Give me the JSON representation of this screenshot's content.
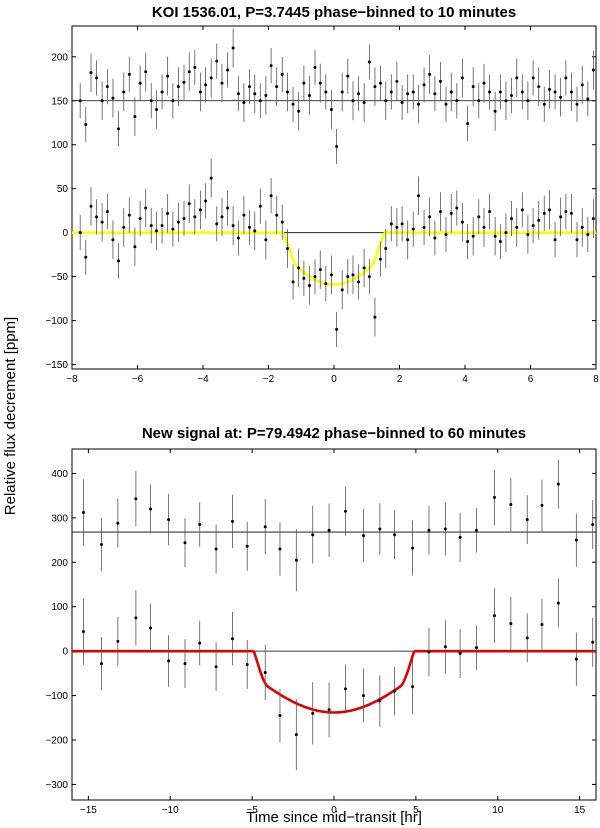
{
  "figure": {
    "shared_ylabel": "Relative flux decrement [ppm]",
    "shared_xlabel": "Time since mid−transit [hr]"
  },
  "chart_data": [
    {
      "type": "scatter",
      "title": "KOI 1536.01, P=3.7445 phase−binned to 10 minutes",
      "xlabel": "",
      "ylabel": "",
      "xlim": [
        -8,
        8
      ],
      "ylim": [
        -155,
        235
      ],
      "xticks": [
        -8,
        -6,
        -4,
        -2,
        0,
        2,
        4,
        6,
        8
      ],
      "yticks": [
        -150,
        -100,
        -50,
        0,
        50,
        100,
        150,
        200
      ],
      "grid": false,
      "model_color": "#ffff00",
      "model": {
        "baseline": 0,
        "depth": 59,
        "t14": 3.1,
        "ingress": 0.45
      },
      "reference_lines": [
        150,
        0
      ],
      "errorbar_color": "#555555",
      "point_color": "#000000",
      "series": [
        {
          "offset": 150,
          "x": [
            -7.75,
            -7.58,
            -7.42,
            -7.25,
            -7.08,
            -6.92,
            -6.75,
            -6.58,
            -6.42,
            -6.25,
            -6.08,
            -5.92,
            -5.75,
            -5.58,
            -5.42,
            -5.25,
            -5.08,
            -4.92,
            -4.75,
            -4.58,
            -4.42,
            -4.25,
            -4.08,
            -3.92,
            -3.75,
            -3.58,
            -3.42,
            -3.25,
            -3.08,
            -2.92,
            -2.75,
            -2.58,
            -2.42,
            -2.25,
            -2.08,
            -1.92,
            -1.75,
            -1.58,
            -1.42,
            -1.25,
            -1.08,
            -0.92,
            -0.75,
            -0.58,
            -0.42,
            -0.25,
            -0.08,
            0.08,
            0.25,
            0.42,
            0.58,
            0.75,
            0.92,
            1.08,
            1.25,
            1.42,
            1.58,
            1.75,
            1.92,
            2.08,
            2.25,
            2.42,
            2.58,
            2.75,
            2.92,
            3.08,
            3.25,
            3.42,
            3.58,
            3.75,
            3.92,
            4.08,
            4.25,
            4.42,
            4.58,
            4.75,
            4.92,
            5.08,
            5.25,
            5.42,
            5.58,
            5.75,
            5.92,
            6.08,
            6.25,
            6.42,
            6.58,
            6.75,
            6.92,
            7.08,
            7.25,
            7.42,
            7.58,
            7.75,
            7.92
          ],
          "y": [
            150,
            123,
            182,
            176,
            150,
            166,
            153,
            118,
            160,
            180,
            132,
            170,
            183,
            150,
            140,
            160,
            178,
            150,
            166,
            171,
            183,
            188,
            160,
            168,
            176,
            195,
            170,
            185,
            210,
            158,
            148,
            166,
            158,
            150,
            156,
            190,
            166,
            180,
            160,
            146,
            138,
            170,
            156,
            188,
            170,
            160,
            140,
            98,
            160,
            178,
            150,
            158,
            148,
            194,
            166,
            170,
            150,
            160,
            172,
            148,
            158,
            160,
            146,
            168,
            180,
            158,
            172,
            146,
            160,
            150,
            176,
            124,
            166,
            150,
            170,
            160,
            138,
            160,
            150,
            156,
            176,
            160,
            150,
            176,
            166,
            146,
            163,
            160,
            154,
            176,
            160,
            146,
            168,
            152,
            185
          ],
          "err": [
            20,
            20,
            22,
            20,
            22,
            20,
            22,
            20,
            22,
            20,
            22,
            20,
            22,
            20,
            22,
            20,
            22,
            20,
            22,
            20,
            22,
            20,
            22,
            20,
            22,
            20,
            22,
            20,
            22,
            20,
            22,
            20,
            22,
            20,
            22,
            20,
            22,
            20,
            22,
            20,
            22,
            20,
            22,
            20,
            22,
            20,
            22,
            20,
            22,
            20,
            22,
            20,
            22,
            20,
            22,
            20,
            22,
            20,
            22,
            20,
            22,
            20,
            22,
            20,
            22,
            20,
            22,
            20,
            22,
            20,
            22,
            20,
            22,
            20,
            22,
            20,
            22,
            20,
            22,
            20,
            22,
            20,
            22,
            20,
            22,
            20,
            22,
            20,
            22,
            20,
            22,
            20,
            22,
            20,
            22
          ]
        },
        {
          "offset": 0,
          "x": [
            -7.75,
            -7.58,
            -7.42,
            -7.25,
            -7.08,
            -6.92,
            -6.75,
            -6.58,
            -6.42,
            -6.25,
            -6.08,
            -5.92,
            -5.75,
            -5.58,
            -5.42,
            -5.25,
            -5.08,
            -4.92,
            -4.75,
            -4.58,
            -4.42,
            -4.25,
            -4.08,
            -3.92,
            -3.75,
            -3.58,
            -3.42,
            -3.25,
            -3.08,
            -2.92,
            -2.75,
            -2.58,
            -2.42,
            -2.25,
            -2.08,
            -1.92,
            -1.75,
            -1.58,
            -1.42,
            -1.25,
            -1.08,
            -0.92,
            -0.75,
            -0.58,
            -0.42,
            -0.25,
            -0.08,
            0.08,
            0.25,
            0.42,
            0.58,
            0.75,
            0.92,
            1.08,
            1.25,
            1.42,
            1.58,
            1.75,
            1.92,
            2.08,
            2.25,
            2.42,
            2.58,
            2.75,
            2.92,
            3.08,
            3.25,
            3.42,
            3.58,
            3.75,
            3.92,
            4.08,
            4.25,
            4.42,
            4.58,
            4.75,
            4.92,
            5.08,
            5.25,
            5.42,
            5.58,
            5.75,
            5.92,
            6.08,
            6.25,
            6.42,
            6.58,
            6.75,
            6.92,
            7.08,
            7.25,
            7.42,
            7.58,
            7.75,
            7.92
          ],
          "y": [
            0,
            -28,
            30,
            18,
            12,
            24,
            -8,
            -32,
            6,
            20,
            -16,
            16,
            28,
            8,
            2,
            8,
            22,
            4,
            12,
            16,
            33,
            18,
            26,
            36,
            62,
            10,
            18,
            28,
            8,
            -6,
            20,
            6,
            2,
            30,
            -8,
            42,
            20,
            12,
            -18,
            -56,
            -40,
            -52,
            -60,
            -50,
            -42,
            -58,
            -48,
            -110,
            -65,
            -50,
            -48,
            -56,
            -40,
            -50,
            -96,
            -30,
            -18,
            10,
            6,
            10,
            -8,
            4,
            42,
            6,
            18,
            -6,
            24,
            -2,
            22,
            28,
            12,
            -10,
            -4,
            18,
            6,
            24,
            -4,
            -10,
            0,
            16,
            6,
            26,
            -2,
            8,
            14,
            22,
            26,
            -8,
            18,
            24,
            22,
            -8,
            6,
            -2,
            16
          ],
          "err": [
            20,
            20,
            22,
            20,
            22,
            20,
            22,
            20,
            22,
            20,
            22,
            20,
            22,
            20,
            22,
            20,
            22,
            20,
            22,
            20,
            22,
            20,
            22,
            20,
            22,
            20,
            22,
            20,
            22,
            20,
            22,
            20,
            22,
            20,
            22,
            20,
            22,
            20,
            22,
            20,
            22,
            20,
            22,
            20,
            22,
            20,
            22,
            20,
            22,
            20,
            22,
            20,
            22,
            20,
            22,
            20,
            22,
            20,
            22,
            20,
            22,
            20,
            22,
            20,
            22,
            20,
            22,
            20,
            22,
            20,
            22,
            20,
            22,
            20,
            22,
            20,
            22,
            20,
            22,
            20,
            22,
            20,
            22,
            20,
            22,
            20,
            22,
            20,
            22,
            20,
            22,
            20,
            22,
            20,
            22
          ]
        }
      ]
    },
    {
      "type": "scatter",
      "title": "New signal at: P=79.4942 phase−binned to 60 minutes",
      "xlabel": "Time since mid−transit [hr]",
      "ylabel": "",
      "xlim": [
        -16,
        16
      ],
      "ylim": [
        -335,
        455
      ],
      "xticks": [
        -15,
        -10,
        -5,
        0,
        5,
        10,
        15
      ],
      "yticks": [
        -300,
        -200,
        -100,
        0,
        100,
        200,
        300,
        400
      ],
      "grid": false,
      "model_color": "#e00000",
      "model": {
        "baseline": 0,
        "depth": 138,
        "t14": 9.8,
        "ingress": 0.85
      },
      "reference_lines": [
        268,
        0
      ],
      "errorbar_color": "#555555",
      "point_color": "#000000",
      "series": [
        {
          "offset": 268,
          "x": [
            -15.3,
            -14.2,
            -13.2,
            -12.1,
            -11.2,
            -10.1,
            -9.1,
            -8.2,
            -7.2,
            -6.2,
            -5.3,
            -4.2,
            -3.3,
            -2.3,
            -1.3,
            -0.3,
            0.7,
            1.8,
            2.8,
            3.7,
            4.8,
            5.8,
            6.8,
            7.7,
            8.7,
            9.8,
            10.8,
            11.8,
            12.7,
            13.7,
            14.8,
            15.8
          ],
          "y": [
            312,
            240,
            288,
            343,
            320,
            296,
            244,
            285,
            230,
            292,
            236,
            280,
            230,
            205,
            262,
            272,
            315,
            260,
            275,
            262,
            232,
            272,
            275,
            256,
            272,
            346,
            330,
            296,
            328,
            376,
            250,
            285
          ],
          "err": [
            75,
            60,
            55,
            62,
            55,
            58,
            55,
            50,
            55,
            60,
            55,
            62,
            60,
            70,
            65,
            60,
            55,
            60,
            58,
            55,
            62,
            55,
            60,
            55,
            50,
            62,
            60,
            55,
            58,
            55,
            60,
            55
          ]
        },
        {
          "offset": 0,
          "x": [
            -15.3,
            -14.2,
            -13.2,
            -12.1,
            -11.2,
            -10.1,
            -9.1,
            -8.2,
            -7.2,
            -6.2,
            -5.3,
            -4.2,
            -3.3,
            -2.3,
            -1.3,
            -0.3,
            0.7,
            1.8,
            2.8,
            3.7,
            4.8,
            5.8,
            6.8,
            7.7,
            8.7,
            9.8,
            10.8,
            11.8,
            12.7,
            13.7,
            14.8,
            15.8
          ],
          "y": [
            44,
            -28,
            22,
            75,
            52,
            -22,
            -28,
            18,
            -35,
            28,
            -30,
            -48,
            -145,
            -188,
            -140,
            -132,
            -85,
            -100,
            -112,
            -90,
            -80,
            -2,
            10,
            -5,
            8,
            80,
            62,
            30,
            60,
            108,
            -18,
            20
          ],
          "err": [
            75,
            60,
            55,
            62,
            55,
            58,
            55,
            50,
            55,
            60,
            55,
            62,
            60,
            80,
            70,
            62,
            55,
            60,
            58,
            55,
            62,
            55,
            60,
            55,
            50,
            62,
            60,
            55,
            58,
            55,
            60,
            55
          ]
        }
      ]
    }
  ]
}
